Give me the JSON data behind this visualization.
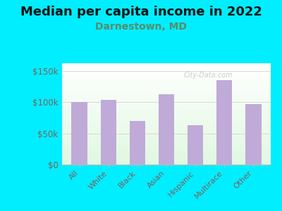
{
  "title": "Median per capita income in 2022",
  "subtitle": "Darnestown, MD",
  "categories": [
    "All",
    "White",
    "Black",
    "Asian",
    "Hispanic",
    "Multirace",
    "Other"
  ],
  "values": [
    100000,
    103000,
    70000,
    113000,
    63000,
    135000,
    97000
  ],
  "bar_color": "#c0aad8",
  "background_color": "#00eeff",
  "title_fontsize": 13,
  "title_color": "#111111",
  "subtitle_fontsize": 10,
  "subtitle_color": "#5a8a6a",
  "tick_label_color": "#7a6060",
  "ytick_labels": [
    "$0",
    "$50k",
    "$100k",
    "$150k"
  ],
  "ytick_values": [
    0,
    50000,
    100000,
    150000
  ],
  "ylim": [
    0,
    162000
  ],
  "watermark": "City-Data.com"
}
